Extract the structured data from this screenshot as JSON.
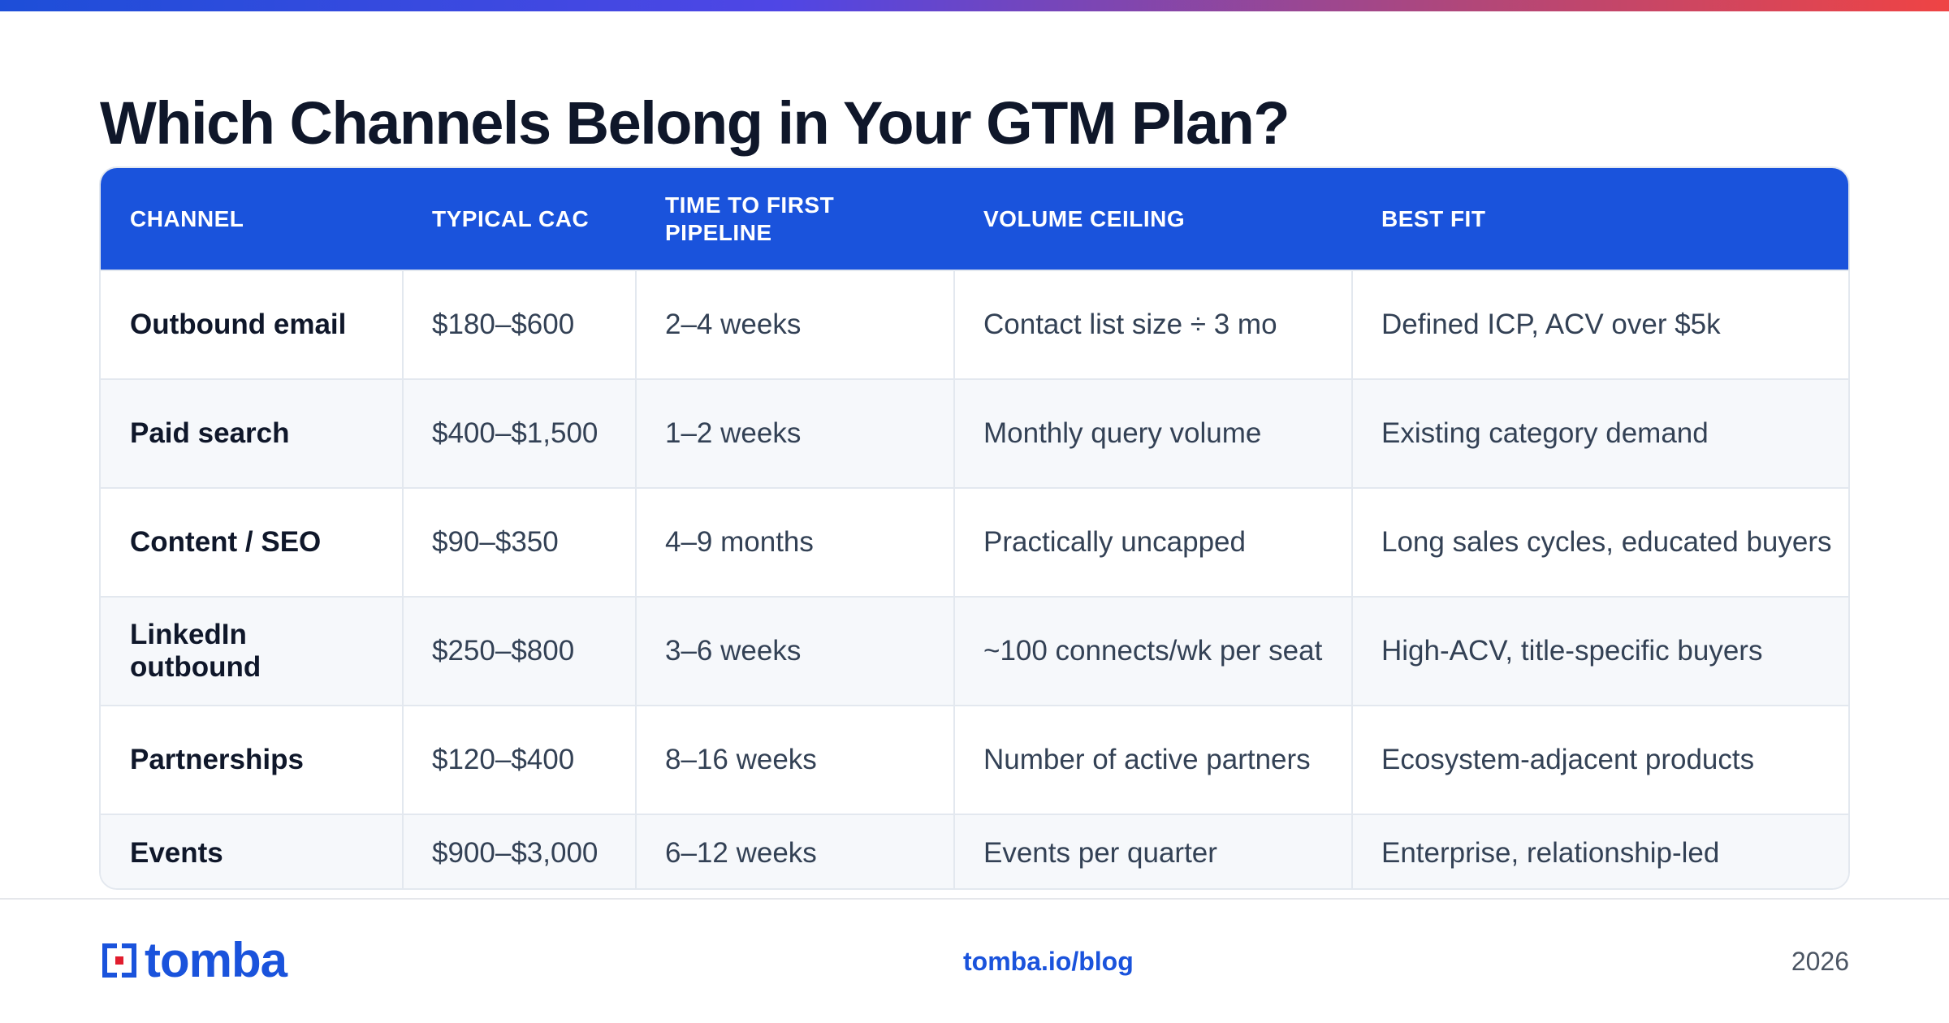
{
  "title": "Which Channels Belong in Your GTM Plan?",
  "colors": {
    "accent": "#1a53dc",
    "title": "#0f172a",
    "row_alt": "#f6f8fb",
    "gradient_start": "#1d4ed8",
    "gradient_end": "#ef4444"
  },
  "table": {
    "headers": [
      "CHANNEL",
      "TYPICAL CAC",
      "TIME TO FIRST PIPELINE",
      "VOLUME CEILING",
      "BEST FIT"
    ],
    "rows": [
      [
        "Outbound email",
        "$180–$600",
        "2–4 weeks",
        "Contact list size ÷ 3 mo",
        "Defined ICP, ACV over $5k"
      ],
      [
        "Paid search",
        "$400–$1,500",
        "1–2 weeks",
        "Monthly query volume",
        "Existing category demand"
      ],
      [
        "Content / SEO",
        "$90–$350",
        "4–9 months",
        "Practically uncapped",
        "Long sales cycles, educated buyers"
      ],
      [
        "LinkedIn outbound",
        "$250–$800",
        "3–6 weeks",
        "~100 connects/wk per seat",
        "High-ACV, title-specific buyers"
      ],
      [
        "Partnerships",
        "$120–$400",
        "8–16 weeks",
        "Number of active partners",
        "Ecosystem-adjacent products"
      ],
      [
        "Events",
        "$900–$3,000",
        "6–12 weeks",
        "Events per quarter",
        "Enterprise, relationship-led"
      ]
    ]
  },
  "footer": {
    "logo_text": "tomba",
    "logo_icon": "tomba-logo-icon",
    "link": "tomba.io/blog",
    "year": "2026"
  }
}
